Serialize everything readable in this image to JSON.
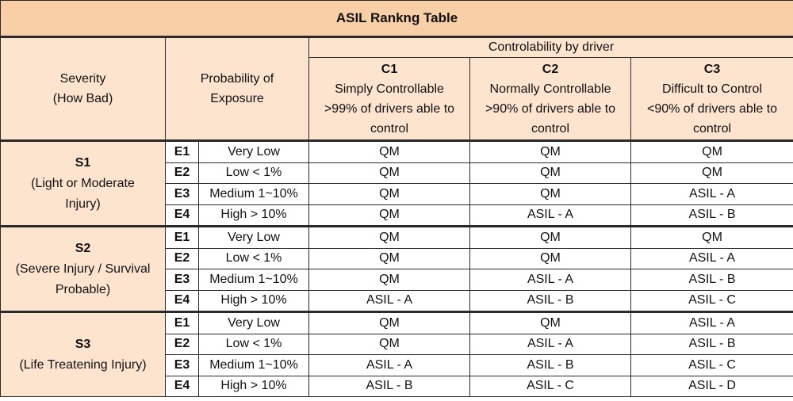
{
  "title": "ASIL Rankng Table",
  "header": {
    "severity": [
      "Severity",
      "(How Bad)"
    ],
    "exposure": [
      "Probability of",
      "Exposure"
    ],
    "controllability": "Controlability by driver",
    "classes": [
      {
        "code": "C1",
        "lines": [
          "Simply Controllable",
          ">99% of drivers able to",
          "control"
        ]
      },
      {
        "code": "C2",
        "lines": [
          "Normally Controllable",
          ">90% of drivers able to",
          "control"
        ]
      },
      {
        "code": "C3",
        "lines": [
          "Difficult to Control",
          "<90% of drivers able to",
          "control"
        ]
      }
    ]
  },
  "groups": [
    {
      "code": "S1",
      "lines": [
        "(Light or Moderate",
        "Injury)"
      ],
      "rows": [
        {
          "e": "E1",
          "desc": "Very Low",
          "values": [
            "QM",
            "QM",
            "QM"
          ]
        },
        {
          "e": "E2",
          "desc": "Low < 1%",
          "values": [
            "QM",
            "QM",
            "QM"
          ]
        },
        {
          "e": "E3",
          "desc": "Medium 1~10%",
          "values": [
            "QM",
            "QM",
            "ASIL - A"
          ]
        },
        {
          "e": "E4",
          "desc": "High > 10%",
          "values": [
            "QM",
            "ASIL - A",
            "ASIL - B"
          ]
        }
      ]
    },
    {
      "code": "S2",
      "lines": [
        "(Severe Injury / Survival",
        "Probable)"
      ],
      "rows": [
        {
          "e": "E1",
          "desc": "Very Low",
          "values": [
            "QM",
            "QM",
            "QM"
          ]
        },
        {
          "e": "E2",
          "desc": "Low < 1%",
          "values": [
            "QM",
            "QM",
            "ASIL - A"
          ]
        },
        {
          "e": "E3",
          "desc": "Medium 1~10%",
          "values": [
            "QM",
            "ASIL - A",
            "ASIL - B"
          ]
        },
        {
          "e": "E4",
          "desc": "High > 10%",
          "values": [
            "ASIL - A",
            "ASIL - B",
            "ASIL - C"
          ]
        }
      ]
    },
    {
      "code": "S3",
      "lines": [
        "(Life Treatening Injury)"
      ],
      "rows": [
        {
          "e": "E1",
          "desc": "Very Low",
          "values": [
            "QM",
            "QM",
            "ASIL - A"
          ]
        },
        {
          "e": "E2",
          "desc": "Low < 1%",
          "values": [
            "QM",
            "ASIL - A",
            "ASIL - B"
          ]
        },
        {
          "e": "E3",
          "desc": "Medium 1~10%",
          "values": [
            "ASIL - A",
            "ASIL - B",
            "ASIL - C"
          ]
        },
        {
          "e": "E4",
          "desc": "High > 10%",
          "values": [
            "ASIL - B",
            "ASIL - C",
            "ASIL - D"
          ]
        }
      ]
    }
  ]
}
